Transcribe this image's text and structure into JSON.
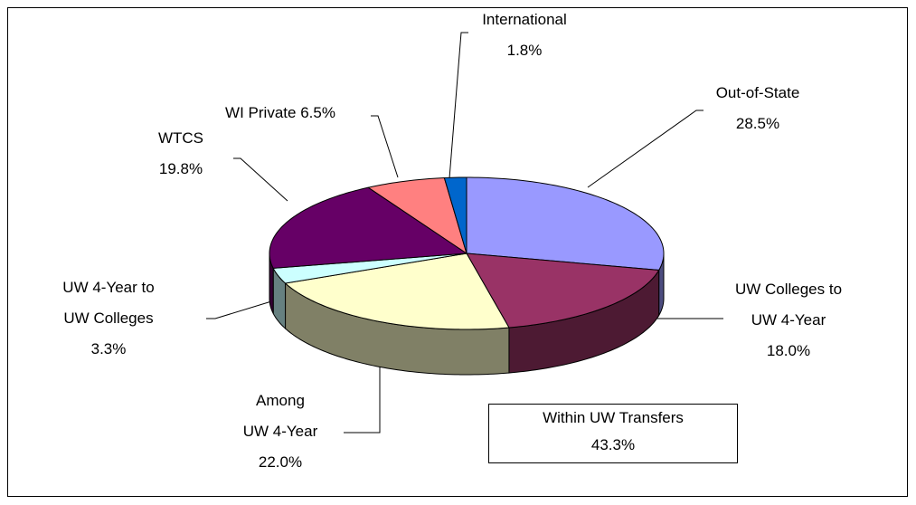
{
  "chart_data": {
    "type": "pie3d",
    "categories": [
      "Out-of-State",
      "UW Colleges to\nUW 4-Year",
      "Among\nUW 4-Year",
      "UW 4-Year to\nUW Colleges",
      "WTCS",
      "WI Private",
      "International"
    ],
    "values": [
      28.5,
      18.0,
      22.0,
      3.3,
      19.8,
      6.5,
      1.8
    ],
    "value_labels": [
      "28.5%",
      "18.0%",
      "22.0%",
      "3.3%",
      "19.8%",
      "6.5%",
      "1.8%"
    ],
    "colors": [
      "#9999ff",
      "#993366",
      "#ffffcc",
      "#ccffff",
      "#660066",
      "#ff8080",
      "#0066cc"
    ],
    "annotation": [
      "Within UW Transfers",
      "43.3%"
    ]
  }
}
